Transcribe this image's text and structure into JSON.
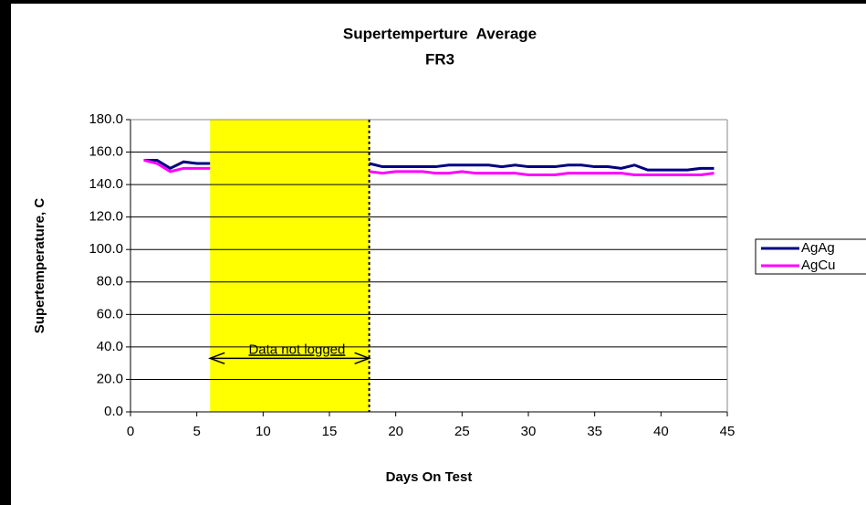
{
  "chart_data": {
    "type": "line",
    "title": "Supertemperture  Average",
    "subtitle": "FR3",
    "x_label": "Days On Test",
    "y_label": "Supertemperature, C",
    "x": [
      1,
      2,
      3,
      4,
      5,
      6,
      7,
      8,
      9,
      10,
      11,
      12,
      13,
      14,
      15,
      16,
      17,
      18,
      19,
      20,
      21,
      22,
      23,
      24,
      25,
      26,
      27,
      28,
      29,
      30,
      31,
      32,
      33,
      34,
      35,
      36,
      37,
      38,
      39,
      40,
      41,
      42,
      43,
      44
    ],
    "series": [
      {
        "name": "AgAg",
        "color": "#000080",
        "values": [
          155,
          155,
          150,
          154,
          153,
          153,
          null,
          null,
          null,
          null,
          null,
          null,
          null,
          null,
          null,
          null,
          null,
          153,
          151,
          151,
          151,
          151,
          151,
          152,
          152,
          152,
          152,
          151,
          152,
          151,
          151,
          151,
          152,
          152,
          151,
          151,
          150,
          152,
          149,
          149,
          149,
          149,
          150,
          150
        ]
      },
      {
        "name": "AgCu",
        "color": "#ff00ff",
        "values": [
          155,
          153,
          148,
          150,
          150,
          150,
          null,
          null,
          null,
          null,
          null,
          null,
          null,
          null,
          null,
          null,
          null,
          148,
          147,
          148,
          148,
          148,
          147,
          147,
          148,
          147,
          147,
          147,
          147,
          146,
          146,
          146,
          147,
          147,
          147,
          147,
          147,
          146,
          146,
          146,
          146,
          146,
          146,
          147
        ]
      }
    ],
    "annotation": {
      "text": "Data not logged",
      "x_start": 6,
      "x_end": 18,
      "y": 33,
      "color": "#ffff00"
    },
    "xlim": [
      0,
      45
    ],
    "xticks": [
      0,
      5,
      10,
      15,
      20,
      25,
      30,
      35,
      40,
      45
    ],
    "ylim": [
      0,
      180
    ],
    "yticks": [
      {
        "value": 0,
        "label": "0.0"
      },
      {
        "value": 20,
        "label": "20.0"
      },
      {
        "value": 40,
        "label": "40.0"
      },
      {
        "value": 60,
        "label": "60.0"
      },
      {
        "value": 80,
        "label": "80.0"
      },
      {
        "value": 100,
        "label": "100.0"
      },
      {
        "value": 120,
        "label": "120.0"
      },
      {
        "value": 140,
        "label": "140.0"
      },
      {
        "value": 160,
        "label": "160.0"
      },
      {
        "value": 180,
        "label": "180.0"
      }
    ],
    "grid": true,
    "legend": "right"
  }
}
